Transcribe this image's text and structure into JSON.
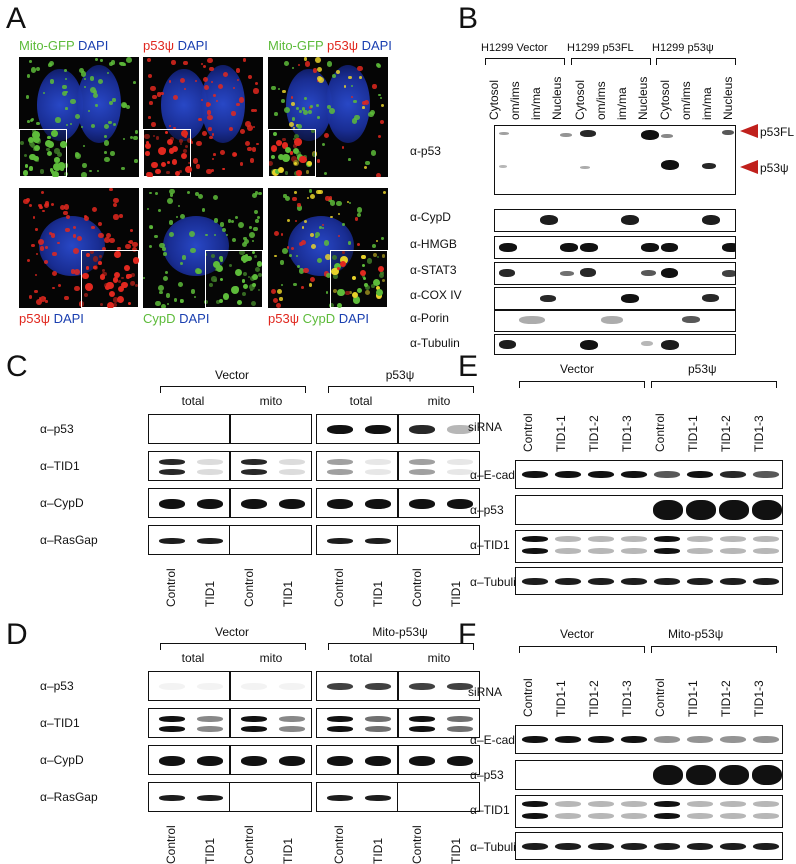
{
  "panels": {
    "A": "A",
    "B": "B",
    "C": "C",
    "D": "D",
    "E": "E",
    "F": "F"
  },
  "panelA": {
    "top_labels": [
      [
        {
          "t": "Mito-GFP ",
          "c": "green"
        },
        {
          "t": "DAPI",
          "c": "blue"
        }
      ],
      [
        {
          "t": "p53ψ ",
          "c": "red"
        },
        {
          "t": "DAPI",
          "c": "blue"
        }
      ],
      [
        {
          "t": "Mito-GFP ",
          "c": "green"
        },
        {
          "t": "p53ψ ",
          "c": "red"
        },
        {
          "t": "DAPI",
          "c": "blue"
        }
      ]
    ],
    "bottom_labels": [
      [
        {
          "t": "p53ψ ",
          "c": "red"
        },
        {
          "t": "DAPI",
          "c": "blue"
        }
      ],
      [
        {
          "t": "CypD ",
          "c": "green"
        },
        {
          "t": "DAPI",
          "c": "blue"
        }
      ],
      [
        {
          "t": "p53ψ ",
          "c": "red"
        },
        {
          "t": "CypD ",
          "c": "green"
        },
        {
          "t": "DAPI",
          "c": "blue"
        }
      ]
    ]
  },
  "panelB": {
    "groups": [
      "H1299 Vector",
      "H1299 p53FL",
      "H1299 p53ψ"
    ],
    "fractions": [
      "Cytosol",
      "om/ims",
      "im/ma",
      "Nucleus"
    ],
    "rows": [
      "α-p53",
      "α-CypD",
      "α-HMGB",
      "α-STAT3",
      "α-COX IV",
      "α-Porin",
      "α-Tubulin"
    ],
    "arrow_labels": [
      "p53FL",
      "p53ψ"
    ]
  },
  "panelC": {
    "groups": [
      "Vector",
      "p53ψ"
    ],
    "sub": [
      "total",
      "mito"
    ],
    "rows": [
      "α–p53",
      "α–TID1",
      "α–CypD",
      "α–RasGap"
    ],
    "lanes": [
      "Control",
      "TID1",
      "Control",
      "TID1"
    ]
  },
  "panelD": {
    "groups": [
      "Vector",
      "Mito-p53ψ"
    ],
    "sub": [
      "total",
      "mito"
    ],
    "rows": [
      "α–p53",
      "α–TID1",
      "α–CypD",
      "α–RasGap"
    ],
    "lanes": [
      "Control",
      "TID1",
      "Control",
      "TID1"
    ]
  },
  "panelE": {
    "groups": [
      "Vector",
      "p53ψ"
    ],
    "sirna": "siRNA",
    "lanes": [
      "Control",
      "TID1-1",
      "TID1-2",
      "TID1-3",
      "Control",
      "TID1-1",
      "TID1-2",
      "TID1-3"
    ],
    "rows": [
      "α–E-cad",
      "α–p53",
      "α–TID1",
      "α–Tubulin"
    ]
  },
  "panelF": {
    "groups": [
      "Vector",
      "Mito-p53ψ"
    ],
    "sirna": "siRNA",
    "lanes": [
      "Control",
      "TID1-1",
      "TID1-2",
      "TID1-3",
      "Control",
      "TID1-1",
      "TID1-2",
      "TID1-3"
    ],
    "rows": [
      "α–E-cad",
      "α–p53",
      "α–TID1",
      "α–Tubulin"
    ]
  },
  "colors": {
    "arrow": "#c0201c",
    "gfp": "#5dbb3a",
    "red": "#e0281f",
    "dapi": "#1a3fb0"
  }
}
